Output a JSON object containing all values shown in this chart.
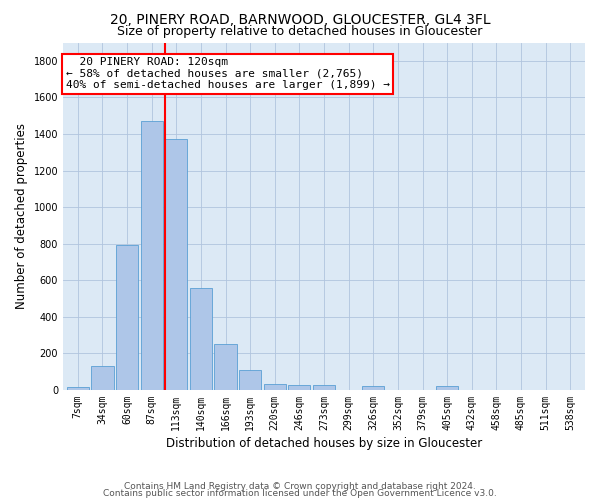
{
  "title_line1": "20, PINERY ROAD, BARNWOOD, GLOUCESTER, GL4 3FL",
  "title_line2": "Size of property relative to detached houses in Gloucester",
  "xlabel": "Distribution of detached houses by size in Gloucester",
  "ylabel": "Number of detached properties",
  "categories": [
    "7sqm",
    "34sqm",
    "60sqm",
    "87sqm",
    "113sqm",
    "140sqm",
    "166sqm",
    "193sqm",
    "220sqm",
    "246sqm",
    "273sqm",
    "299sqm",
    "326sqm",
    "352sqm",
    "379sqm",
    "405sqm",
    "432sqm",
    "458sqm",
    "485sqm",
    "511sqm",
    "538sqm"
  ],
  "values": [
    15,
    130,
    795,
    1470,
    1370,
    560,
    250,
    110,
    35,
    28,
    28,
    0,
    20,
    0,
    0,
    20,
    0,
    0,
    0,
    0,
    0
  ],
  "bar_color": "#aec6e8",
  "bar_edgecolor": "#5a9fd4",
  "red_line_bar_index": 4,
  "ylim": [
    0,
    1900
  ],
  "yticks": [
    0,
    200,
    400,
    600,
    800,
    1000,
    1200,
    1400,
    1600,
    1800
  ],
  "annotation_title": "20 PINERY ROAD: 120sqm",
  "annotation_line1": "← 58% of detached houses are smaller (2,765)",
  "annotation_line2": "40% of semi-detached houses are larger (1,899) →",
  "footer_line1": "Contains HM Land Registry data © Crown copyright and database right 2024.",
  "footer_line2": "Contains public sector information licensed under the Open Government Licence v3.0.",
  "background_color": "#ffffff",
  "plot_bg_color": "#dce9f5",
  "grid_color": "#b0c4de",
  "title_fontsize": 10,
  "subtitle_fontsize": 9,
  "axis_label_fontsize": 8.5,
  "tick_fontsize": 7,
  "footer_fontsize": 6.5,
  "annotation_fontsize": 8
}
